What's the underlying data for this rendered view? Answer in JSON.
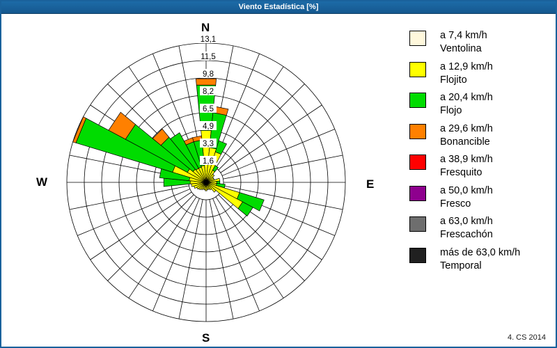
{
  "title_bar": {
    "title": "Viento Estadística [%]"
  },
  "footer": {
    "credit": "4. CS 2014"
  },
  "compass": {
    "n": "N",
    "e": "E",
    "s": "S",
    "w": "W"
  },
  "legend": {
    "items": [
      {
        "speed_label": "a 7,4 km/h",
        "name": "Ventolina",
        "color": "#FFF8DC"
      },
      {
        "speed_label": "a 12,9 km/h",
        "name": "Flojito",
        "color": "#FFFF00"
      },
      {
        "speed_label": "a 20,4 km/h",
        "name": "Flojo",
        "color": "#00DC00"
      },
      {
        "speed_label": "a 29,6 km/h",
        "name": "Bonancible",
        "color": "#FF8000"
      },
      {
        "speed_label": "a 38,9 km/h",
        "name": "Fresquito",
        "color": "#FF0000"
      },
      {
        "speed_label": "a 50,0 km/h",
        "name": "Fresco",
        "color": "#8E008E"
      },
      {
        "speed_label": "a 63,0 km/h",
        "name": "Frescachón",
        "color": "#6E6E6E"
      },
      {
        "speed_label": "más de 63,0 km/h",
        "name": "Temporal",
        "color": "#202020"
      }
    ]
  },
  "chart_data": {
    "type": "bar",
    "subtype": "wind-rose-polar-stacked",
    "title": "Viento Estadística [%]",
    "units": "%",
    "max_value": 13.1,
    "ring_values": [
      1.6,
      3.3,
      4.9,
      6.5,
      8.2,
      9.8,
      11.5,
      13.1
    ],
    "ring_labels": [
      "1,6",
      "3,3",
      "4,9",
      "6,5",
      "8,2",
      "9,8",
      "11,5",
      "13,1"
    ],
    "sector_width_deg": 11.25,
    "grid": {
      "spokes": 32,
      "rings": 8,
      "spoke_inner_ring": 1
    },
    "segment_order": [
      "ventolina",
      "flojito",
      "flojo",
      "bonancible"
    ],
    "segment_colors": {
      "ventolina": "#FFF8DC",
      "flojito": "#FFFF00",
      "flojo": "#00DC00",
      "bonancible": "#FF8000"
    },
    "petals_note": "stack values are cumulative radial extents in percent",
    "petals": [
      {
        "dir": 0.0,
        "stack": {
          "ventolina": 0,
          "flojito": 4.9,
          "flojo": 9.2,
          "bonancible": 9.8
        }
      },
      {
        "dir": 11.25,
        "stack": {
          "ventolina": 0,
          "flojito": 3.3,
          "flojo": 6.6,
          "bonancible": 7.2
        }
      },
      {
        "dir": 22.5,
        "stack": {
          "ventolina": 0,
          "flojito": 3.0,
          "flojo": 4.1,
          "bonancible": 4.1
        }
      },
      {
        "dir": 33.75,
        "stack": {
          "ventolina": 0,
          "flojito": 1.3,
          "flojo": 1.8,
          "bonancible": 1.8
        }
      },
      {
        "dir": 45.0,
        "stack": {
          "ventolina": 0,
          "flojito": 1.0,
          "flojo": 1.0,
          "bonancible": 1.0
        }
      },
      {
        "dir": 56.25,
        "stack": {
          "ventolina": 0,
          "flojito": 0.8,
          "flojo": 0.8,
          "bonancible": 0.8
        }
      },
      {
        "dir": 67.5,
        "stack": {
          "ventolina": 0,
          "flojito": 0.8,
          "flojo": 0.8,
          "bonancible": 0.8
        }
      },
      {
        "dir": 78.75,
        "stack": {
          "ventolina": 0,
          "flojito": 1.3,
          "flojo": 1.3,
          "bonancible": 1.3
        }
      },
      {
        "dir": 90.0,
        "stack": {
          "ventolina": 0,
          "flojito": 1.0,
          "flojo": 1.3,
          "bonancible": 1.3
        }
      },
      {
        "dir": 101.25,
        "stack": {
          "ventolina": 0,
          "flojito": 1.0,
          "flojo": 1.8,
          "bonancible": 1.8
        }
      },
      {
        "dir": 112.5,
        "stack": {
          "ventolina": 0,
          "flojito": 3.3,
          "flojo": 5.7,
          "bonancible": 5.7
        }
      },
      {
        "dir": 123.75,
        "stack": {
          "ventolina": 0,
          "flojito": 3.9,
          "flojo": 5.0,
          "bonancible": 5.0
        }
      },
      {
        "dir": 135.0,
        "stack": {
          "ventolina": 0,
          "flojito": 1.2,
          "flojo": 1.2,
          "bonancible": 1.2
        }
      },
      {
        "dir": 146.25,
        "stack": {
          "ventolina": 0,
          "flojito": 0.8,
          "flojo": 0.8,
          "bonancible": 0.8
        }
      },
      {
        "dir": 157.5,
        "stack": {
          "ventolina": 0,
          "flojito": 0.7,
          "flojo": 0.7,
          "bonancible": 0.7
        }
      },
      {
        "dir": 168.75,
        "stack": {
          "ventolina": 0,
          "flojito": 0.7,
          "flojo": 0.7,
          "bonancible": 0.7
        }
      },
      {
        "dir": 180.0,
        "stack": {
          "ventolina": 0,
          "flojito": 0.8,
          "flojo": 0.8,
          "bonancible": 0.8
        }
      },
      {
        "dir": 191.25,
        "stack": {
          "ventolina": 0,
          "flojito": 0.7,
          "flojo": 0.7,
          "bonancible": 0.7
        }
      },
      {
        "dir": 202.5,
        "stack": {
          "ventolina": 0,
          "flojito": 0.7,
          "flojo": 0.7,
          "bonancible": 0.7
        }
      },
      {
        "dir": 213.75,
        "stack": {
          "ventolina": 0,
          "flojito": 0.8,
          "flojo": 0.8,
          "bonancible": 0.8
        }
      },
      {
        "dir": 225.0,
        "stack": {
          "ventolina": 0,
          "flojito": 0.9,
          "flojo": 0.9,
          "bonancible": 0.9
        }
      },
      {
        "dir": 236.25,
        "stack": {
          "ventolina": 0,
          "flojito": 1.0,
          "flojo": 1.0,
          "bonancible": 1.0
        }
      },
      {
        "dir": 247.5,
        "stack": {
          "ventolina": 0,
          "flojito": 1.2,
          "flojo": 1.2,
          "bonancible": 1.2
        }
      },
      {
        "dir": 258.75,
        "stack": {
          "ventolina": 0,
          "flojito": 1.4,
          "flojo": 1.4,
          "bonancible": 1.4
        }
      },
      {
        "dir": 270.0,
        "stack": {
          "ventolina": 0,
          "flojito": 1.5,
          "flojo": 4.0,
          "bonancible": 4.0
        }
      },
      {
        "dir": 281.25,
        "stack": {
          "ventolina": 0,
          "flojito": 1.6,
          "flojo": 4.4,
          "bonancible": 4.4
        }
      },
      {
        "dir": 292.5,
        "stack": {
          "ventolina": 0,
          "flojito": 3.3,
          "flojo": 12.8,
          "bonancible": 13.1
        }
      },
      {
        "dir": 303.75,
        "stack": {
          "ventolina": 0,
          "flojito": 2.0,
          "flojo": 8.6,
          "bonancible": 10.4
        }
      },
      {
        "dir": 315.0,
        "stack": {
          "ventolina": 0,
          "flojito": 1.6,
          "flojo": 5.5,
          "bonancible": 6.5
        }
      },
      {
        "dir": 326.25,
        "stack": {
          "ventolina": 0,
          "flojito": 1.5,
          "flojo": 5.3,
          "bonancible": 5.3
        }
      },
      {
        "dir": 337.5,
        "stack": {
          "ventolina": 0,
          "flojito": 1.5,
          "flojo": 4.0,
          "bonancible": 4.4
        }
      },
      {
        "dir": 348.75,
        "stack": {
          "ventolina": 0,
          "flojito": 1.6,
          "flojo": 4.0,
          "bonancible": 4.4
        }
      }
    ]
  }
}
